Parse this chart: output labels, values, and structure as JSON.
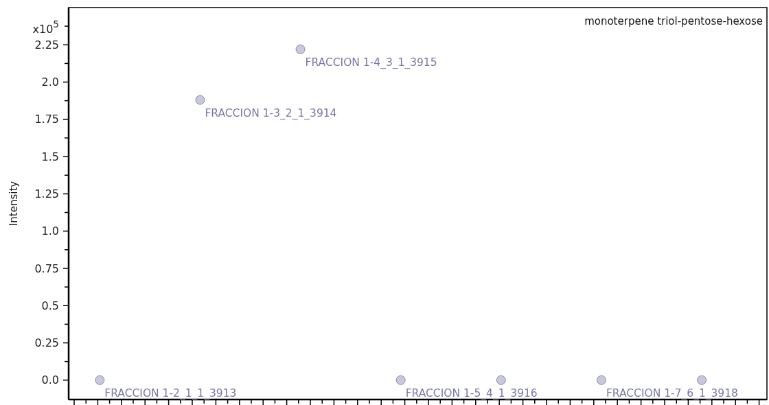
{
  "chart_data": {
    "type": "scatter",
    "title": "monoterpene triol-pentose-hexose",
    "ylabel": "Intensity",
    "annotations": [
      "x10$^{5}$"
    ],
    "categories": [
      null,
      null,
      null,
      null,
      null,
      null,
      null
    ],
    "series": [
      {
        "color": "#c8c8dc",
        "values": [
          0,
          1.88,
          2.22,
          0,
          0,
          0,
          0
        ],
        "value_labels": [
          "FRACCION 1-2_1_1_3913",
          "FRACCION 1-3_2_1_3914",
          "FRACCION 1-4_3_1_3915",
          "FRACCION 1-5_4_1_3916",
          null,
          "FRACCION 1-7_6_1_3918",
          null
        ]
      }
    ],
    "ylim": [
      -0.13,
      2.5
    ],
    "yticks": [
      {
        "value": 0,
        "label": "0.0"
      },
      {
        "value": 0.125,
        "label": null
      },
      0.25,
      {
        "value": 0.375,
        "label": null
      },
      0.5,
      {
        "value": 0.625,
        "label": null
      },
      0.75,
      {
        "value": 0.875,
        "label": null
      },
      {
        "value": 1,
        "label": "1.0"
      },
      {
        "value": 1.125,
        "label": null
      },
      1.25,
      {
        "value": 1.375,
        "label": null
      },
      1.5,
      {
        "value": 1.625,
        "label": null
      },
      1.75,
      {
        "value": 1.875,
        "label": null
      },
      {
        "value": 2,
        "label": "2.0"
      },
      {
        "value": 2.125,
        "label": null
      },
      2.25,
      {
        "value": 2.375,
        "label": null
      }
    ],
    "marker": "circle",
    "grid": false
  }
}
